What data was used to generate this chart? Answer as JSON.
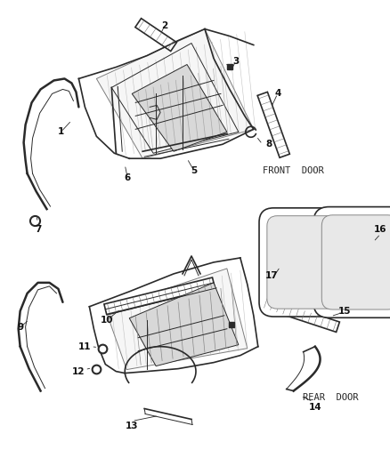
{
  "bg_color": "#ffffff",
  "line_color": "#2a2a2a",
  "label_color": "#111111",
  "front_door_label": "FRONT  DOOR",
  "rear_door_label": "REAR  DOOR",
  "figsize": [
    4.39,
    5.33
  ],
  "dpi": 100
}
